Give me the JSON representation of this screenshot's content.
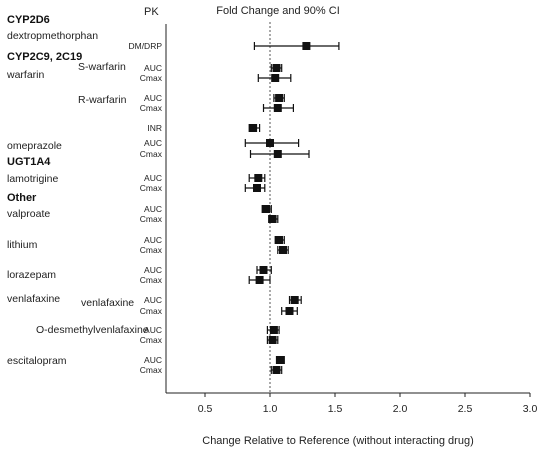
{
  "chart_data": {
    "type": "forest",
    "header_pk": "PK",
    "title": "Fold Change and 90% CI",
    "xlabel": "Change Relative to Reference (without interacting drug)",
    "xlim": [
      0.2,
      3.0
    ],
    "xticks": [
      "0.5",
      "1.0",
      "1.5",
      "2.0",
      "2.5",
      "3.0"
    ],
    "reference_line": 1.0,
    "group_labels": [
      {
        "text": "CYP2D6",
        "row": 0
      },
      {
        "text": "CYP2C9, 2C19",
        "row": 1
      },
      {
        "text": "UGT1A4",
        "row": 7.5
      },
      {
        "text": "Other",
        "row": 9.5
      }
    ],
    "drug_labels": [
      {
        "text": "dextropmethorphan",
        "row": 0
      },
      {
        "text": "warfarin",
        "row": 2
      },
      {
        "text": "omeprazole",
        "row": 6.5
      },
      {
        "text": "lamotrigine",
        "row": 8.5
      },
      {
        "text": "valproate",
        "row": 10.5
      },
      {
        "text": "lithium",
        "row": 12.5
      },
      {
        "text": "lorazepam",
        "row": 14.5
      },
      {
        "text": "venlafaxine",
        "row": 16.1
      }
    ],
    "sub_labels": [
      {
        "text": "S-warfarin",
        "row": 1.5
      },
      {
        "text": "R-warfarin",
        "row": 3.5
      },
      {
        "text": "venlafaxine",
        "row": 16.5
      },
      {
        "text": "O-desmethylvenlafaxine",
        "row": 18.5
      }
    ],
    "escitalopram_label": {
      "text": "escitalopram",
      "row": 20.5
    },
    "rows": [
      {
        "pk": "DM/DRP",
        "est": 1.28,
        "lo": 0.88,
        "hi": 1.53
      },
      {
        "pk": "AUC",
        "est": 1.05,
        "lo": 1.01,
        "hi": 1.09
      },
      {
        "pk": "Cmax",
        "est": 1.04,
        "lo": 0.91,
        "hi": 1.16
      },
      {
        "pk": "AUC",
        "est": 1.07,
        "lo": 1.03,
        "hi": 1.11
      },
      {
        "pk": "Cmax",
        "est": 1.06,
        "lo": 0.95,
        "hi": 1.18
      },
      {
        "pk": "INR",
        "est": 0.87,
        "lo": 0.84,
        "hi": 0.92
      },
      {
        "pk": "AUC",
        "est": 1.0,
        "lo": 0.81,
        "hi": 1.22
      },
      {
        "pk": "Cmax",
        "est": 1.06,
        "lo": 0.85,
        "hi": 1.3
      },
      {
        "pk": "AUC",
        "est": 0.91,
        "lo": 0.84,
        "hi": 0.96
      },
      {
        "pk": "Cmax",
        "est": 0.9,
        "lo": 0.81,
        "hi": 0.96
      },
      {
        "pk": "AUC",
        "est": 0.97,
        "lo": 0.94,
        "hi": 1.01
      },
      {
        "pk": "Cmax",
        "est": 1.02,
        "lo": 0.99,
        "hi": 1.06
      },
      {
        "pk": "AUC",
        "est": 1.07,
        "lo": 1.04,
        "hi": 1.11
      },
      {
        "pk": "Cmax",
        "est": 1.1,
        "lo": 1.06,
        "hi": 1.14
      },
      {
        "pk": "AUC",
        "est": 0.95,
        "lo": 0.9,
        "hi": 1.01
      },
      {
        "pk": "Cmax",
        "est": 0.92,
        "lo": 0.84,
        "hi": 1.0
      },
      {
        "pk": "AUC",
        "est": 1.19,
        "lo": 1.15,
        "hi": 1.24
      },
      {
        "pk": "Cmax",
        "est": 1.15,
        "lo": 1.09,
        "hi": 1.21
      },
      {
        "pk": "AUC",
        "est": 1.03,
        "lo": 0.98,
        "hi": 1.07
      },
      {
        "pk": "Cmax",
        "est": 1.02,
        "lo": 0.98,
        "hi": 1.06
      },
      {
        "pk": "AUC",
        "est": 1.08,
        "lo": 1.05,
        "hi": 1.11
      },
      {
        "pk": "Cmax",
        "est": 1.05,
        "lo": 1.01,
        "hi": 1.09
      }
    ]
  }
}
